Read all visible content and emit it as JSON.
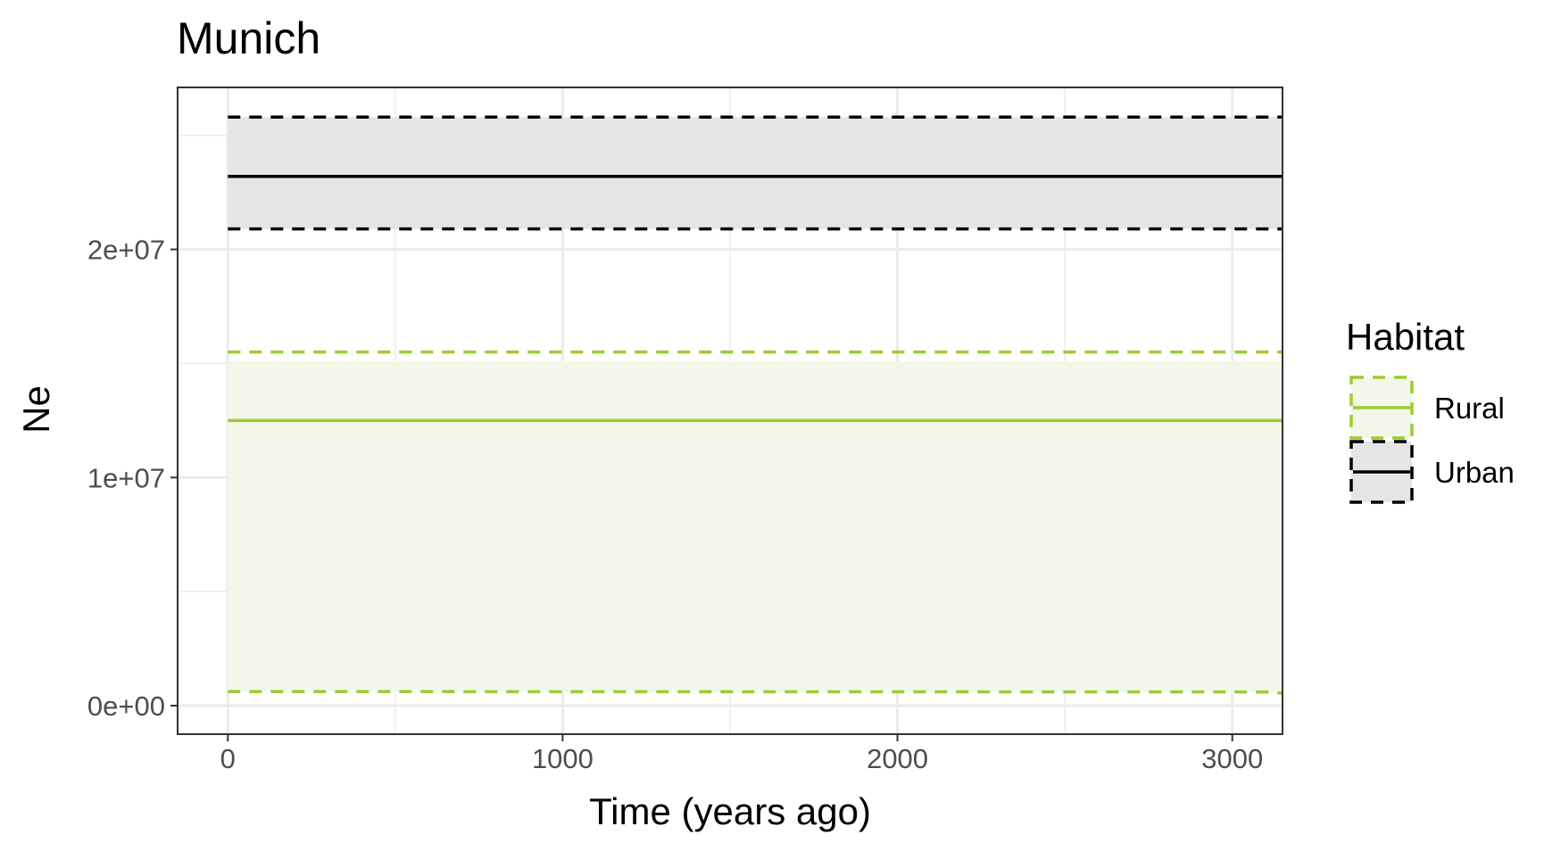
{
  "chart_data": {
    "type": "line",
    "title": "Munich",
    "xlabel": "Time (years ago)",
    "ylabel": "Ne",
    "xlim": [
      -150,
      3150
    ],
    "ylim": [
      -1250000,
      27100000
    ],
    "x_ticks": [
      0,
      1000,
      2000,
      3000
    ],
    "x_tick_labels": [
      "0",
      "1000",
      "2000",
      "3000"
    ],
    "y_ticks": [
      0,
      10000000,
      20000000
    ],
    "y_tick_labels": [
      "0e+00",
      "1e+07",
      "2e+07"
    ],
    "x_minor_ticks": [
      500,
      1500,
      2500
    ],
    "y_minor_ticks": [
      5000000,
      15000000,
      25000000
    ],
    "grid": true,
    "legend": {
      "title": "Habitat",
      "position": "right",
      "entries": [
        "Rural",
        "Urban"
      ]
    },
    "series": [
      {
        "name": "Rural",
        "color": "#9acd32",
        "ribbon_fill": "#f3f7e9",
        "x": [
          0,
          3100,
          3150
        ],
        "median": [
          12500000,
          12500000,
          12500000
        ],
        "upper": [
          15500000,
          15500000,
          15500000
        ],
        "lower": [
          620000,
          600000,
          550000
        ],
        "ribbon_upper": [
          15100000,
          15100000,
          15100000
        ]
      },
      {
        "name": "Urban",
        "color": "#000000",
        "ribbon_fill": "#e5e5e5",
        "x": [
          0,
          3150
        ],
        "median": [
          23200000,
          23200000
        ],
        "upper": [
          25800000,
          25800000
        ],
        "lower": [
          20900000,
          20900000
        ],
        "ribbon_upper": [
          25800000,
          25800000
        ]
      }
    ]
  }
}
